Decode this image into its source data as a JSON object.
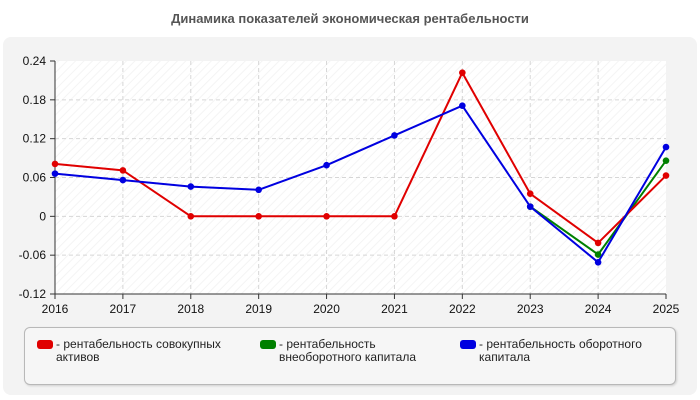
{
  "title": "Динамика показателей экономическая рентабельности",
  "chart_data": {
    "type": "line",
    "categories": [
      "2016",
      "2017",
      "2018",
      "2019",
      "2020",
      "2021",
      "2022",
      "2023",
      "2024",
      "2025"
    ],
    "series": [
      {
        "name": "рентабельность совокупных активов",
        "color": "#e00000",
        "values": [
          0.081,
          0.071,
          0.0,
          0.0,
          0.0,
          0.0,
          0.222,
          0.035,
          -0.041,
          0.063
        ]
      },
      {
        "name": "рентабельность внеоборотного капитала",
        "color": "#008000",
        "values": [
          null,
          null,
          null,
          null,
          null,
          null,
          null,
          0.015,
          -0.059,
          0.086
        ]
      },
      {
        "name": "рентабельность оборотного капитала",
        "color": "#0000e0",
        "values": [
          0.066,
          0.056,
          0.046,
          0.041,
          0.079,
          0.125,
          0.171,
          0.015,
          -0.071,
          0.107
        ]
      }
    ],
    "yticks": [
      "0.24",
      "0.18",
      "0.12",
      "0.06",
      "0",
      "-0.06",
      "-0.12"
    ],
    "ylim": [
      -0.12,
      0.24
    ],
    "grid": true,
    "legend_position": "bottom"
  },
  "legend": {
    "prefix": "-",
    "items": [
      {
        "label": "рентабельность совокупных активов"
      },
      {
        "label": "рентабельность внеоборотного капитала"
      },
      {
        "label": "рентабельность оборотного капитала"
      }
    ]
  }
}
